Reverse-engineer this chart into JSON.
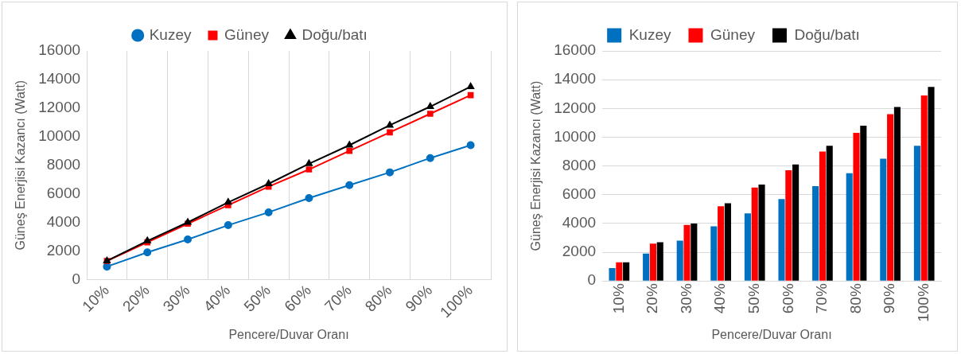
{
  "chart_data": [
    {
      "type": "line",
      "xlabel": "Pencere/Duvar Oranı",
      "ylabel": "Güneş Enerjisi Kazancı (Watt)",
      "categories": [
        "10%",
        "20%",
        "30%",
        "40%",
        "50%",
        "60%",
        "70%",
        "80%",
        "90%",
        "100%"
      ],
      "series": [
        {
          "name": "Kuzey",
          "color": "#0070c0",
          "marker": "circle",
          "values": [
            900,
            1900,
            2800,
            3800,
            4700,
            5700,
            6600,
            7500,
            8500,
            9400
          ]
        },
        {
          "name": "Güney",
          "color": "#ff0000",
          "marker": "square",
          "values": [
            1300,
            2600,
            3900,
            5200,
            6500,
            7700,
            9000,
            10300,
            11600,
            12900
          ]
        },
        {
          "name": "Doğu/batı",
          "color": "#000000",
          "marker": "triangle",
          "values": [
            1300,
            2700,
            4000,
            5400,
            6700,
            8100,
            9400,
            10800,
            12100,
            13500
          ]
        }
      ],
      "ylim": [
        0,
        16000
      ],
      "yticks": [
        0,
        2000,
        4000,
        6000,
        8000,
        10000,
        12000,
        14000,
        16000
      ],
      "grid": "x",
      "legend": "top",
      "line_style": "solid"
    },
    {
      "type": "bar",
      "xlabel": "Pencere/Duvar Oranı",
      "ylabel": "Güneş Enerjisi Kazancı (Watt)",
      "categories": [
        "10%",
        "20%",
        "30%",
        "40%",
        "50%",
        "60%",
        "70%",
        "80%",
        "90%",
        "100%"
      ],
      "series": [
        {
          "name": "Kuzey",
          "color": "#0070c0",
          "values": [
            900,
            1900,
            2800,
            3800,
            4700,
            5700,
            6600,
            7500,
            8500,
            9400
          ]
        },
        {
          "name": "Güney",
          "color": "#ff0000",
          "values": [
            1300,
            2600,
            3900,
            5200,
            6500,
            7700,
            9000,
            10300,
            11600,
            12900
          ]
        },
        {
          "name": "Doğu/batı",
          "color": "#000000",
          "values": [
            1300,
            2700,
            4000,
            5400,
            6700,
            8100,
            9400,
            10800,
            12100,
            13500
          ]
        }
      ],
      "ylim": [
        0,
        16000
      ],
      "yticks": [
        0,
        2000,
        4000,
        6000,
        8000,
        10000,
        12000,
        14000,
        16000
      ],
      "grid": "y",
      "legend": "top"
    }
  ]
}
